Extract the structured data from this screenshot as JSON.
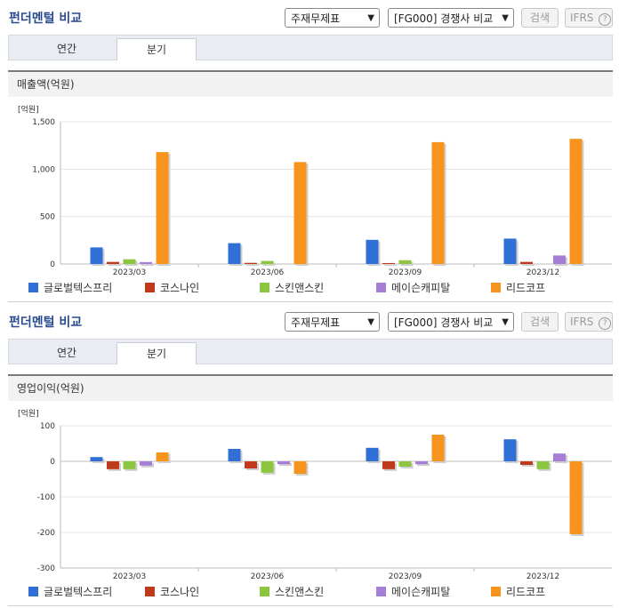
{
  "panels": [
    {
      "header": {
        "title": "펀더멘털 비교",
        "select1": "주재무제표",
        "select2": "[FG000] 경쟁사 비교",
        "search_button": "검색",
        "ifrs_label": "IFRS",
        "help_icon": "?"
      },
      "tabs": [
        {
          "label": "연간"
        },
        {
          "label": "분기"
        }
      ],
      "chart_title": "매출액(억원)",
      "chart_data": {
        "type": "bar",
        "unit_label": "[억원]",
        "categories": [
          "2023/03",
          "2023/06",
          "2023/09",
          "2023/12"
        ],
        "ylim": [
          0,
          1500
        ],
        "yticks": [
          0,
          500,
          1000,
          1500
        ],
        "ytick_labels": [
          "0",
          "500",
          "1,000",
          "1,500"
        ],
        "grid": true,
        "legend_position": "bottom",
        "series": [
          {
            "name": "글로벌텍스프리",
            "color": "#2f6fd6",
            "values": [
              175,
              220,
              255,
              268
            ]
          },
          {
            "name": "코스나인",
            "color": "#c0391b",
            "values": [
              22,
              12,
              10,
              22
            ]
          },
          {
            "name": "스킨앤스킨",
            "color": "#8cc63f",
            "values": [
              50,
              32,
              40,
              0
            ]
          },
          {
            "name": "메이슨캐피탈",
            "color": "#a67ed8",
            "values": [
              20,
              0,
              0,
              90
            ]
          },
          {
            "name": "리드코프",
            "color": "#f7941d",
            "values": [
              1180,
              1075,
              1285,
              1320
            ]
          }
        ]
      }
    },
    {
      "header": {
        "title": "펀더멘털 비교",
        "select1": "주재무제표",
        "select2": "[FG000] 경쟁사 비교",
        "search_button": "검색",
        "ifrs_label": "IFRS",
        "help_icon": "?"
      },
      "tabs": [
        {
          "label": "연간"
        },
        {
          "label": "분기"
        }
      ],
      "chart_title": "영업이익(억원)",
      "chart_data": {
        "type": "bar",
        "unit_label": "[억원]",
        "categories": [
          "2023/03",
          "2023/06",
          "2023/09",
          "2023/12"
        ],
        "ylim": [
          -300,
          100
        ],
        "yticks": [
          -300,
          -200,
          -100,
          0,
          100
        ],
        "ytick_labels": [
          "-300",
          "-200",
          "-100",
          "0",
          "100"
        ],
        "grid": true,
        "legend_position": "bottom",
        "series": [
          {
            "name": "글로벌텍스프리",
            "color": "#2f6fd6",
            "values": [
              12,
              35,
              38,
              62
            ]
          },
          {
            "name": "코스나인",
            "color": "#c0391b",
            "values": [
              -22,
              -20,
              -22,
              -10
            ]
          },
          {
            "name": "스킨앤스킨",
            "color": "#8cc63f",
            "values": [
              -22,
              -32,
              -15,
              -22
            ]
          },
          {
            "name": "메이슨캐피탈",
            "color": "#a67ed8",
            "values": [
              -12,
              -8,
              -8,
              22
            ]
          },
          {
            "name": "리드코프",
            "color": "#f7941d",
            "values": [
              25,
              -35,
              75,
              -205
            ]
          }
        ]
      }
    }
  ]
}
